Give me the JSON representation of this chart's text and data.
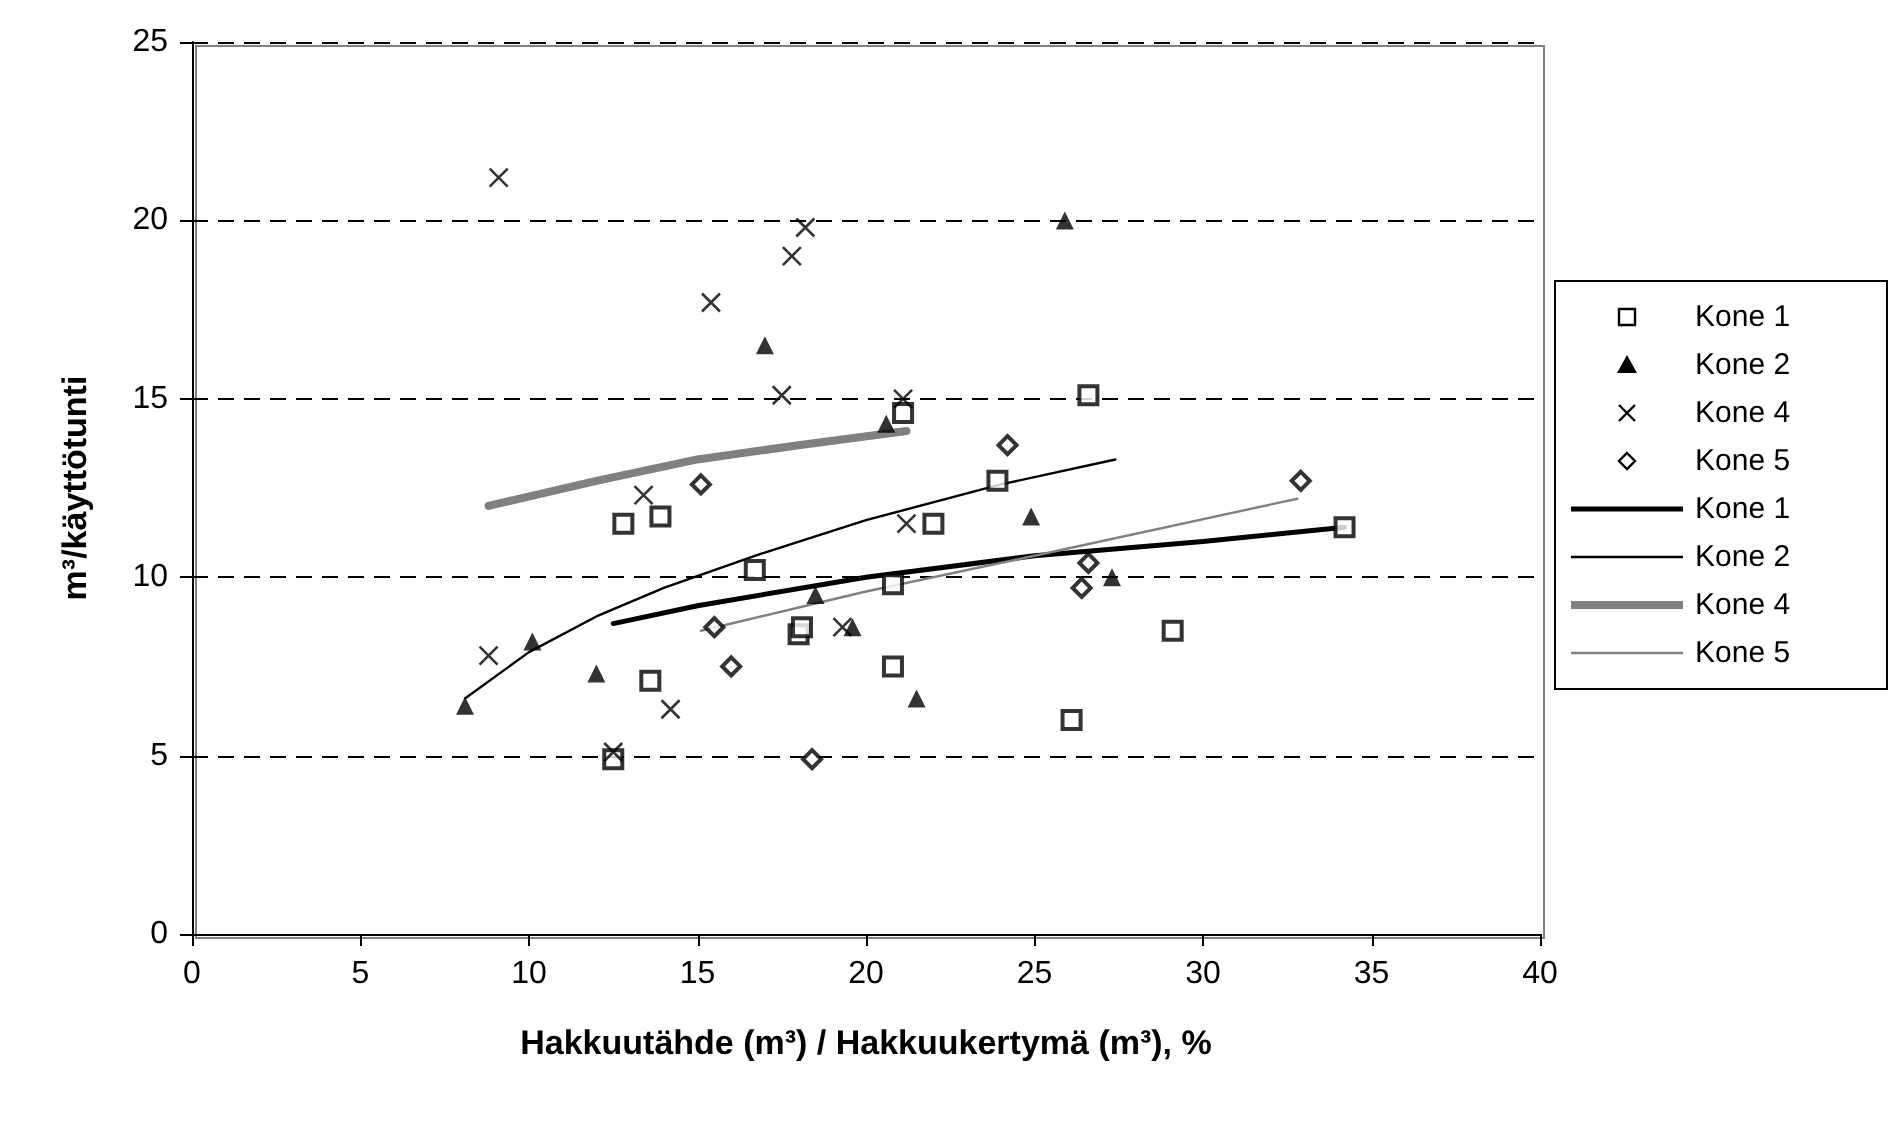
{
  "chart_data": {
    "type": "scatter",
    "xlabel": "Hakkuutähde (m³) / Hakkuukertymä (m³), %",
    "ylabel": "m³/käyttötunti",
    "xlim": [
      0,
      40
    ],
    "xticks": [
      0,
      5,
      10,
      15,
      20,
      25,
      30,
      35,
      40
    ],
    "ylim": [
      0,
      25
    ],
    "yticks": [
      0,
      5,
      10,
      15,
      20,
      25
    ],
    "grid": "y",
    "legend": "right",
    "series": [
      {
        "name": "Kone 1",
        "marker": "square",
        "color": "#000000",
        "x": [
          12.8,
          13.9,
          13.6,
          12.5,
          16.7,
          18.0,
          18.1,
          21.1,
          20.8,
          20.8,
          22.0,
          23.9,
          26.1,
          29.1,
          34.2,
          26.6
        ],
        "values": [
          11.5,
          11.7,
          7.1,
          4.9,
          10.2,
          8.4,
          8.6,
          14.6,
          7.5,
          9.8,
          11.5,
          12.7,
          6.0,
          8.5,
          11.4,
          15.1
        ]
      },
      {
        "name": "Kone 2",
        "marker": "triangle",
        "color": "#000000",
        "x": [
          8.1,
          10.1,
          12.0,
          18.5,
          19.6,
          21.5,
          24.9,
          27.3,
          25.9,
          17.0,
          20.6
        ],
        "values": [
          6.4,
          8.2,
          7.3,
          9.5,
          8.6,
          6.6,
          11.7,
          10.0,
          20.0,
          16.5,
          14.3
        ]
      },
      {
        "name": "Kone 4",
        "marker": "cross",
        "color": "#000000",
        "x": [
          9.1,
          18.2,
          17.8,
          15.4,
          17.5,
          21.1,
          13.4,
          8.8,
          14.2,
          12.5,
          19.3,
          21.2
        ],
        "values": [
          21.2,
          19.8,
          19.0,
          17.7,
          15.1,
          15.0,
          12.3,
          7.8,
          6.3,
          5.1,
          8.6,
          11.5
        ]
      },
      {
        "name": "Kone 5",
        "marker": "diamond",
        "color": "#000000",
        "x": [
          15.1,
          15.5,
          16.0,
          18.4,
          24.2,
          32.9,
          26.6,
          26.4
        ],
        "values": [
          12.6,
          8.6,
          7.5,
          4.9,
          13.7,
          12.7,
          10.4,
          9.7
        ]
      },
      {
        "name": "Kone 1",
        "type": "line",
        "marker": "none",
        "line_style": "solid",
        "color": "#000000",
        "x": [
          12.5,
          15,
          20,
          25,
          30,
          34.2
        ],
        "values": [
          8.7,
          9.2,
          10.0,
          10.6,
          11.0,
          11.4
        ]
      },
      {
        "name": "Kone 2",
        "type": "line",
        "marker": "none",
        "line_style": "solid",
        "color": "#000000",
        "x": [
          8.1,
          10,
          12,
          14,
          16.7,
          20,
          24,
          27.4
        ],
        "values": [
          6.6,
          7.9,
          8.9,
          9.7,
          10.6,
          11.6,
          12.6,
          13.3
        ]
      },
      {
        "name": "Kone 4",
        "type": "line",
        "marker": "none",
        "line_style": "solid",
        "color": "#808080",
        "x": [
          8.8,
          12,
          15,
          18,
          21.2
        ],
        "values": [
          12.0,
          12.7,
          13.3,
          13.7,
          14.1
        ]
      },
      {
        "name": "Kone 5",
        "type": "line",
        "marker": "none",
        "line_style": "solid",
        "color": "#808080",
        "x": [
          15.1,
          20,
          25,
          32.8
        ],
        "values": [
          8.5,
          9.6,
          10.6,
          12.2
        ]
      }
    ]
  }
}
